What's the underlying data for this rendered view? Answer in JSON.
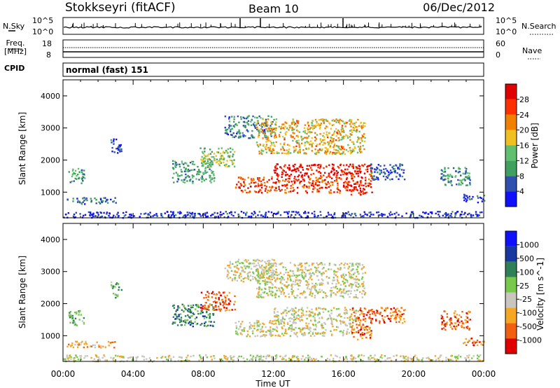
{
  "header": {
    "station": "Stokkseyri (fitACF)",
    "beam": "Beam 10",
    "date": "06/Dec/2012"
  },
  "top_panels": {
    "nsky_label": "N.Sky",
    "nsearch_label": "N.Search",
    "freq_label_line1": "Freq.",
    "freq_label_line2": "[MHz]",
    "nave_label": "Nave",
    "cpid_label": "CPID",
    "cpid_value": "normal (fast) 151",
    "noise_left_ticks": [
      "10^5",
      "10^0"
    ],
    "noise_right_ticks": [
      "10^5",
      "10^0"
    ],
    "freq_ticks": [
      "18",
      "8"
    ],
    "nave_ticks": [
      "60",
      "0"
    ]
  },
  "x_axis": {
    "title": "Time UT",
    "ticks": [
      "00:00",
      "04:00",
      "08:00",
      "12:00",
      "16:00",
      "20:00",
      "00:00"
    ]
  },
  "colors": {
    "power_scale": [
      "#1010ff",
      "#3050b0",
      "#40a060",
      "#60c070",
      "#f0c020",
      "#f08000",
      "#ff3000",
      "#e00000"
    ],
    "velocity_scale": [
      "#1010ff",
      "#1838a0",
      "#2f7f57",
      "#76c94a",
      "#c8c6be",
      "#f5a623",
      "#f06010",
      "#e00000"
    ],
    "ground_scatter": "#c8c6be"
  },
  "chart_data": [
    {
      "type": "heatmap",
      "name": "power",
      "ylabel": "Slant Range [km]",
      "y_ticks": [
        "1000",
        "2000",
        "3000",
        "4000"
      ],
      "ylim": [
        200,
        4500
      ],
      "xlim_hours": [
        0,
        24
      ],
      "colorbar_label": "Power [dB]",
      "colorbar_ticks": [
        "4",
        "8",
        "12",
        "16",
        "20",
        "24",
        "28"
      ],
      "colorbar_range": [
        0,
        30
      ],
      "regions": [
        {
          "t0": 0.3,
          "t1": 1.2,
          "r0": 1300,
          "r1": 1800,
          "level": 10
        },
        {
          "t0": 0.2,
          "t1": 3.0,
          "r0": 650,
          "r1": 850,
          "level": 6
        },
        {
          "t0": 2.7,
          "t1": 3.3,
          "r0": 2200,
          "r1": 2700,
          "level": 4
        },
        {
          "t0": 6.2,
          "t1": 8.6,
          "r0": 1300,
          "r1": 2000,
          "level": 10
        },
        {
          "t0": 7.8,
          "t1": 9.8,
          "r0": 1800,
          "r1": 2400,
          "level": 14
        },
        {
          "t0": 9.2,
          "t1": 12.0,
          "r0": 2700,
          "r1": 3400,
          "level": 8
        },
        {
          "t0": 11.0,
          "t1": 17.2,
          "r0": 2200,
          "r1": 3300,
          "level": 18
        },
        {
          "t0": 9.8,
          "t1": 16.5,
          "r0": 1000,
          "r1": 1500,
          "level": 24
        },
        {
          "t0": 12.0,
          "t1": 16.8,
          "r0": 1500,
          "r1": 1900,
          "level": 28
        },
        {
          "t0": 16.4,
          "t1": 17.6,
          "r0": 900,
          "r1": 1900,
          "level": 26
        },
        {
          "t0": 17.5,
          "t1": 19.5,
          "r0": 1400,
          "r1": 1900,
          "level": 5
        },
        {
          "t0": 21.5,
          "t1": 23.2,
          "r0": 1200,
          "r1": 1800,
          "level": 9
        },
        {
          "t0": 22.8,
          "t1": 24.0,
          "r0": 700,
          "r1": 950,
          "level": 4
        },
        {
          "t0": 0.0,
          "t1": 24.0,
          "r0": 220,
          "r1": 420,
          "level": 3
        }
      ]
    },
    {
      "type": "heatmap",
      "name": "velocity",
      "ylabel": "Slant Range [km]",
      "y_ticks": [
        "1000",
        "2000",
        "3000",
        "4000"
      ],
      "ylim": [
        200,
        4500
      ],
      "xlim_hours": [
        0,
        24
      ],
      "colorbar_label": "Velocity [m s^-1]",
      "colorbar_ticks": [
        "1000",
        "500",
        "100",
        "25",
        "-25",
        "-100",
        "-500",
        "-1000"
      ],
      "regions": [
        {
          "t0": 0.3,
          "t1": 1.2,
          "r0": 1300,
          "r1": 1800,
          "level": 3
        },
        {
          "t0": 0.2,
          "t1": 3.0,
          "r0": 650,
          "r1": 850,
          "level": 5
        },
        {
          "t0": 2.7,
          "t1": 3.3,
          "r0": 2200,
          "r1": 2700,
          "level": 3
        },
        {
          "t0": 6.2,
          "t1": 8.6,
          "r0": 1300,
          "r1": 2000,
          "level": 2
        },
        {
          "t0": 7.8,
          "t1": 9.8,
          "r0": 1800,
          "r1": 2400,
          "level": 6
        },
        {
          "t0": 9.2,
          "t1": 12.0,
          "r0": 2700,
          "r1": 3400,
          "level": 4
        },
        {
          "t0": 11.0,
          "t1": 17.2,
          "r0": 2200,
          "r1": 3300,
          "level": 4
        },
        {
          "t0": 9.8,
          "t1": 16.5,
          "r0": 1000,
          "r1": 1500,
          "level": 4
        },
        {
          "t0": 12.0,
          "t1": 16.8,
          "r0": 1500,
          "r1": 1900,
          "level": 4
        },
        {
          "t0": 16.4,
          "t1": 17.6,
          "r0": 900,
          "r1": 1900,
          "level": 6
        },
        {
          "t0": 17.5,
          "t1": 19.5,
          "r0": 1400,
          "r1": 1900,
          "level": 6
        },
        {
          "t0": 21.5,
          "t1": 23.2,
          "r0": 1200,
          "r1": 1800,
          "level": 6
        },
        {
          "t0": 22.8,
          "t1": 24.0,
          "r0": 700,
          "r1": 950,
          "level": 6
        },
        {
          "t0": 0.0,
          "t1": 24.0,
          "r0": 220,
          "r1": 420,
          "level": 4
        }
      ]
    }
  ]
}
